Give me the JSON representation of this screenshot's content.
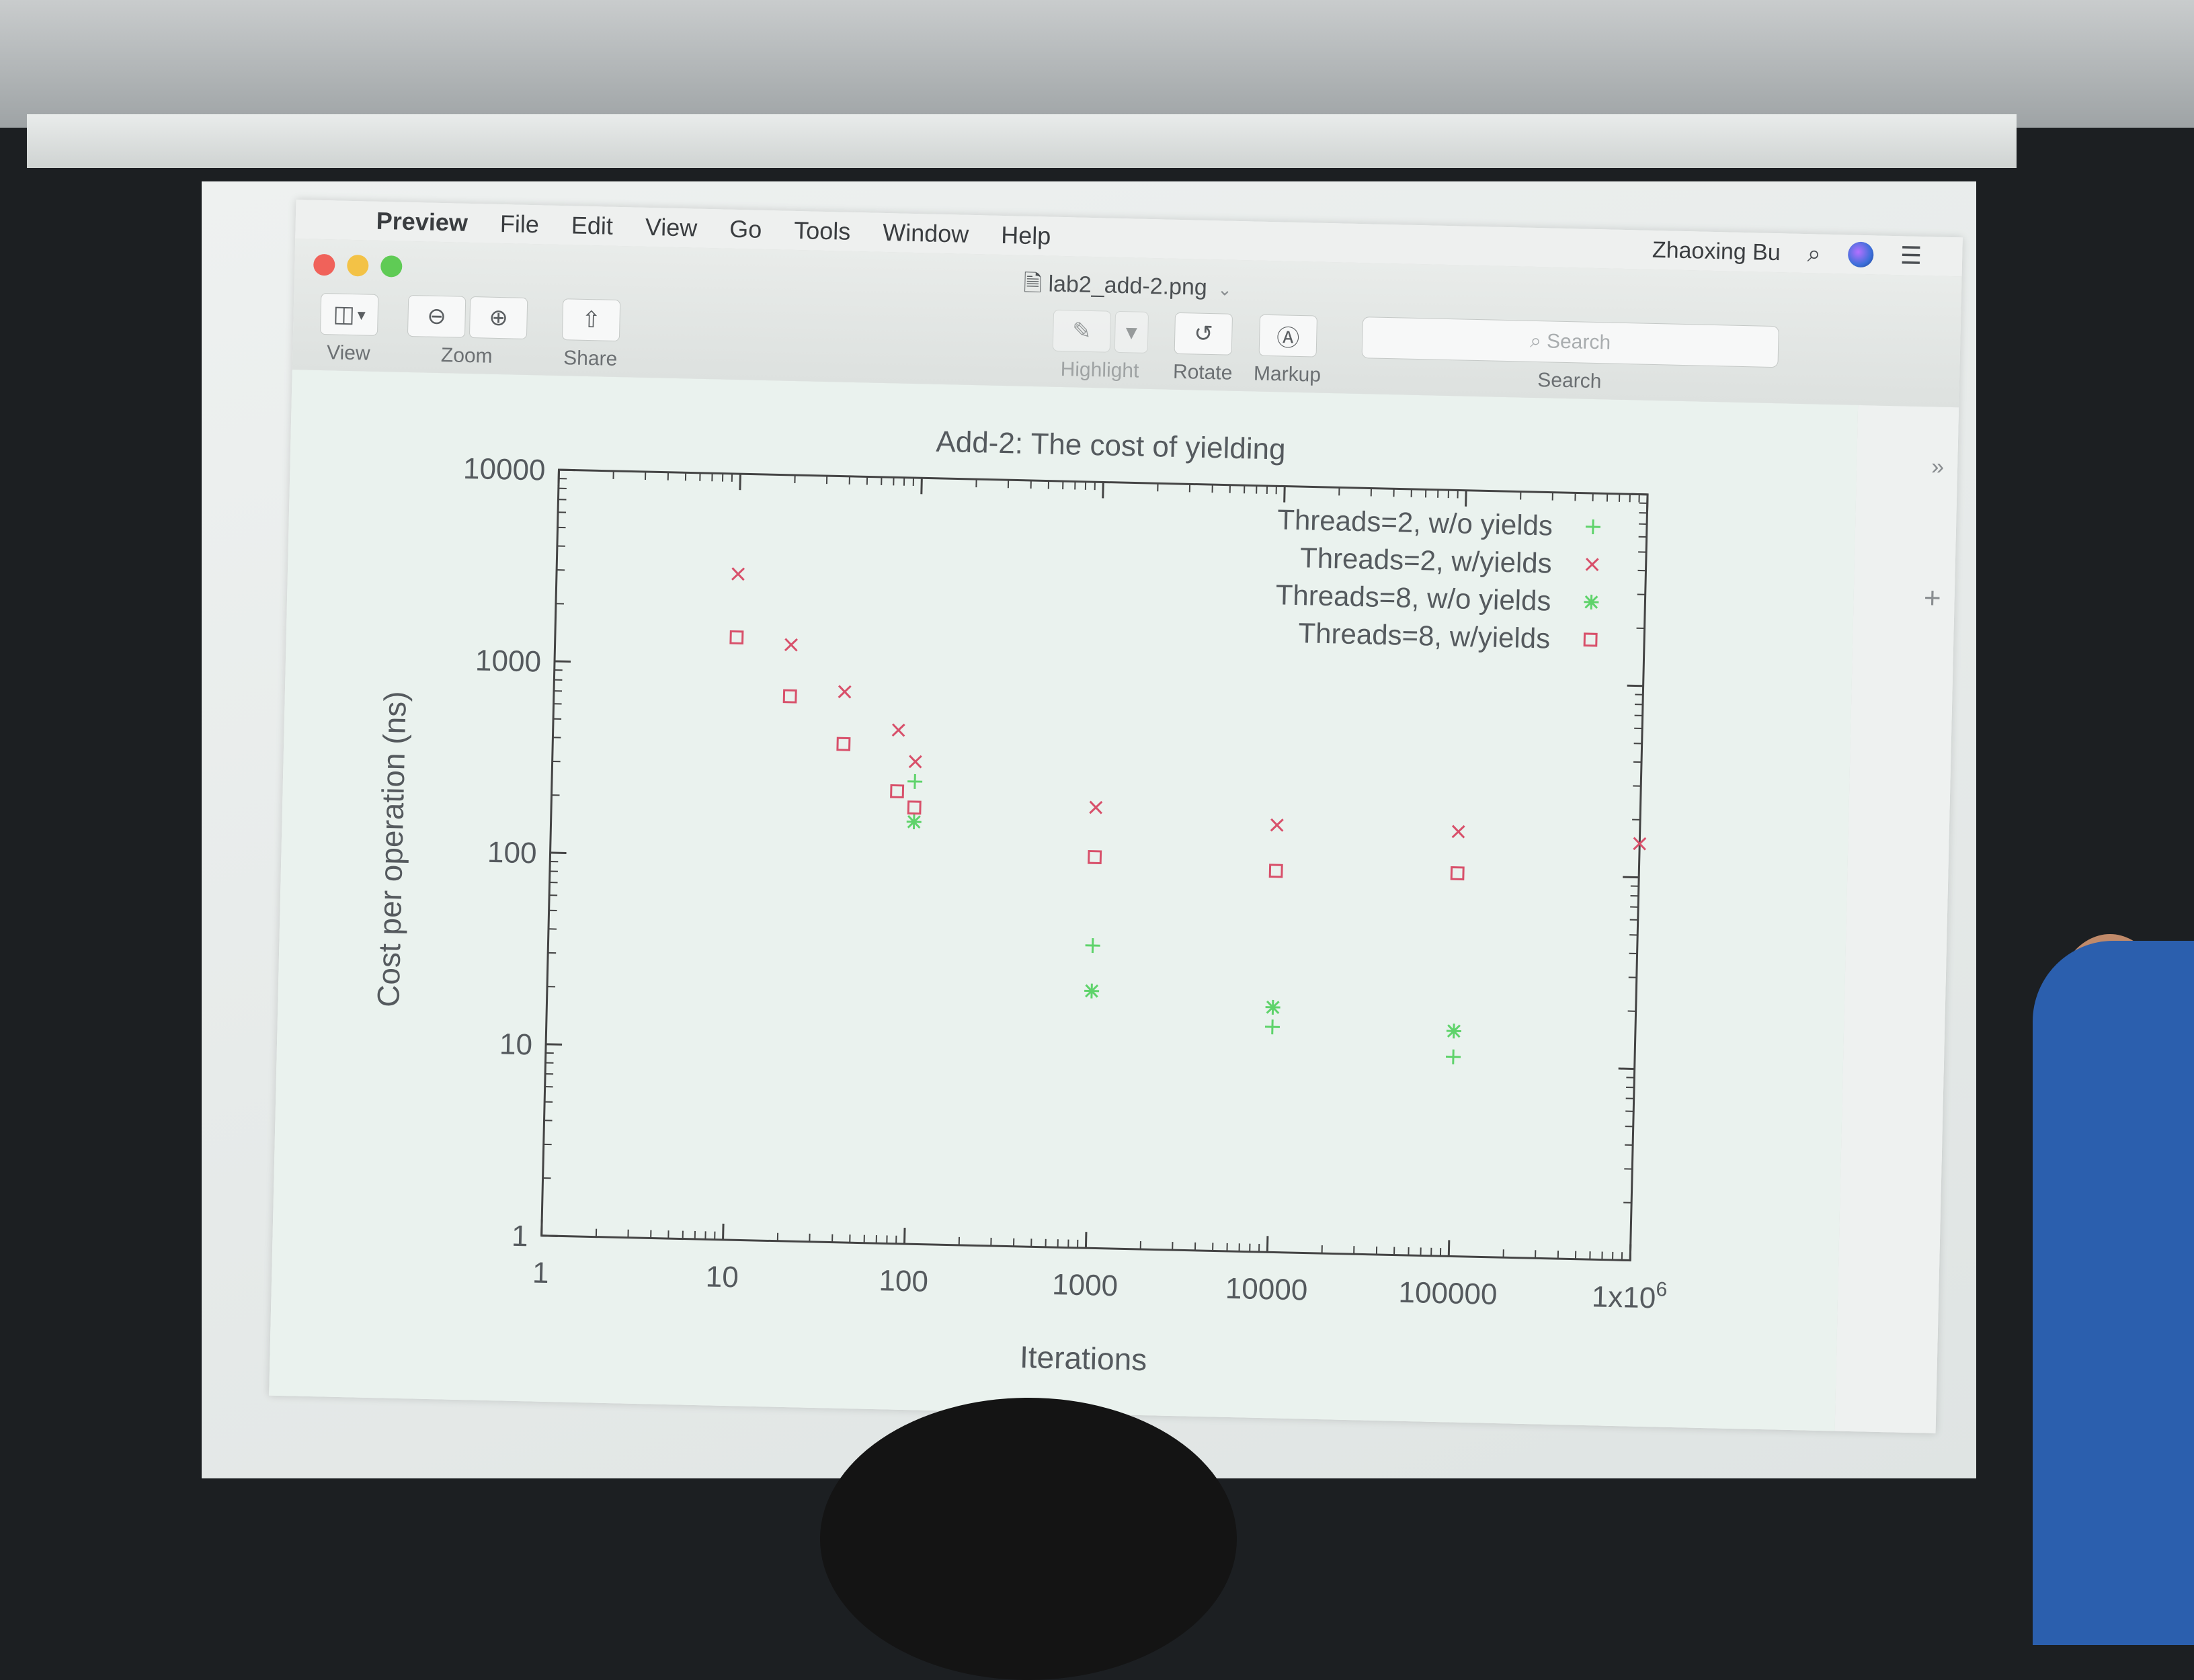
{
  "menubar": {
    "apple": "",
    "items": [
      "Preview",
      "File",
      "Edit",
      "View",
      "Go",
      "Tools",
      "Window",
      "Help"
    ],
    "user": "Zhaoxing Bu",
    "icons": [
      "search-icon",
      "siri-icon",
      "notification-center-icon"
    ]
  },
  "window": {
    "title": "lab2_add-2.png",
    "title_icon": "document-icon"
  },
  "toolbar": {
    "view_label": "View",
    "zoom_label": "Zoom",
    "share_label": "Share",
    "highlight_label": "Highlight",
    "rotate_label": "Rotate",
    "markup_label": "Markup",
    "search_label": "Search",
    "search_placeholder": "Search"
  },
  "sidebar": {
    "toggle_icon": "chevron-double-right-icon",
    "add_icon": "plus-icon"
  },
  "colors": {
    "plus_series": "#5fd36b",
    "cross_series": "#d8506a",
    "square_series": "#d8506a",
    "plot_bg": "#eaf2ee"
  },
  "chart_data": {
    "type": "scatter",
    "title": "Add-2: The cost of yielding",
    "xlabel": "Iterations",
    "ylabel": "Cost per operation (ns)",
    "xscale": "log",
    "yscale": "log",
    "xlim": [
      1,
      1000000
    ],
    "ylim": [
      1,
      10000
    ],
    "xticks": [
      1,
      10,
      100,
      1000,
      10000,
      100000,
      1000000
    ],
    "xtick_labels": [
      "1",
      "10",
      "100",
      "1000",
      "10000",
      "100000",
      "1x10^6"
    ],
    "yticks": [
      1,
      10,
      100,
      1000,
      10000
    ],
    "ytick_labels": [
      "1",
      "10",
      "100",
      "1000",
      "10000"
    ],
    "grid": false,
    "legend_position": "top-right",
    "series": [
      {
        "name": "Threads=2, w/o yields",
        "marker": "plus",
        "color": "#5fd36b",
        "points": [
          [
            100,
            260
          ],
          [
            1000,
            38
          ],
          [
            10000,
            15
          ],
          [
            100000,
            11
          ]
        ]
      },
      {
        "name": "Threads=2, w/yields",
        "marker": "cross",
        "color": "#d8506a",
        "points": [
          [
            10,
            3000
          ],
          [
            20,
            1300
          ],
          [
            40,
            750
          ],
          [
            80,
            480
          ],
          [
            100,
            330
          ],
          [
            1000,
            200
          ],
          [
            10000,
            170
          ],
          [
            100000,
            165
          ],
          [
            1000000,
            150
          ]
        ]
      },
      {
        "name": "Threads=8, w/o yields",
        "marker": "star",
        "color": "#5fd36b",
        "points": [
          [
            100,
            160
          ],
          [
            1000,
            22
          ],
          [
            10000,
            19
          ],
          [
            100000,
            15
          ]
        ]
      },
      {
        "name": "Threads=8, w/yields",
        "marker": "square",
        "color": "#d8506a",
        "points": [
          [
            10,
            1400
          ],
          [
            20,
            700
          ],
          [
            40,
            400
          ],
          [
            80,
            230
          ],
          [
            100,
            190
          ],
          [
            1000,
            110
          ],
          [
            10000,
            98
          ],
          [
            100000,
            100
          ]
        ]
      }
    ]
  }
}
